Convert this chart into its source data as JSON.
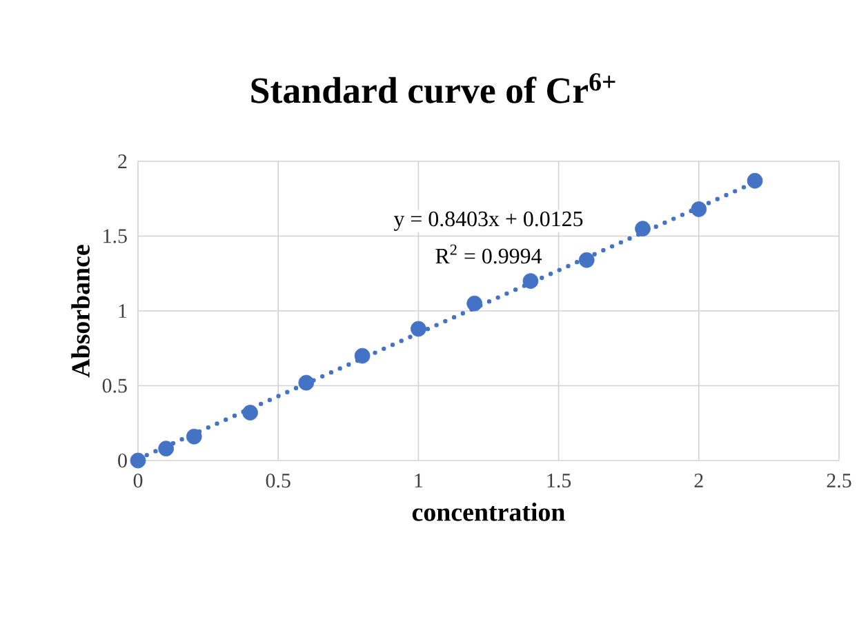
{
  "chart_data": {
    "type": "scatter",
    "title": "Standard curve of Cr$^{6+}$",
    "xlabel": "concentration",
    "ylabel": "Absorbance",
    "x": [
      0,
      0.1,
      0.2,
      0.4,
      0.6,
      0.8,
      1.0,
      1.2,
      1.4,
      1.6,
      1.8,
      2.0,
      2.2
    ],
    "series": [
      {
        "color": "#4472c4",
        "marker": "circle",
        "values": [
          0,
          0.08,
          0.16,
          0.32,
          0.52,
          0.7,
          0.88,
          1.05,
          1.2,
          1.34,
          1.55,
          1.68,
          1.87
        ]
      },
      {
        "type": "line",
        "color": "#4472c4",
        "marker": "none",
        "line_style": "dotted",
        "x": [
          0,
          2.2
        ],
        "values": [
          0.01,
          1.86
        ]
      }
    ],
    "annotations": [
      "y = 0.8403x + 0.0125",
      "R$^{2}$ = 0.9994"
    ],
    "xlim": [
      0,
      2.5
    ],
    "ylim": [
      0,
      2
    ],
    "xticks": [
      0,
      0.5,
      1,
      1.5,
      2,
      2.5
    ],
    "yticks": [
      0,
      0.5,
      1,
      1.5,
      2
    ],
    "grid": true
  }
}
